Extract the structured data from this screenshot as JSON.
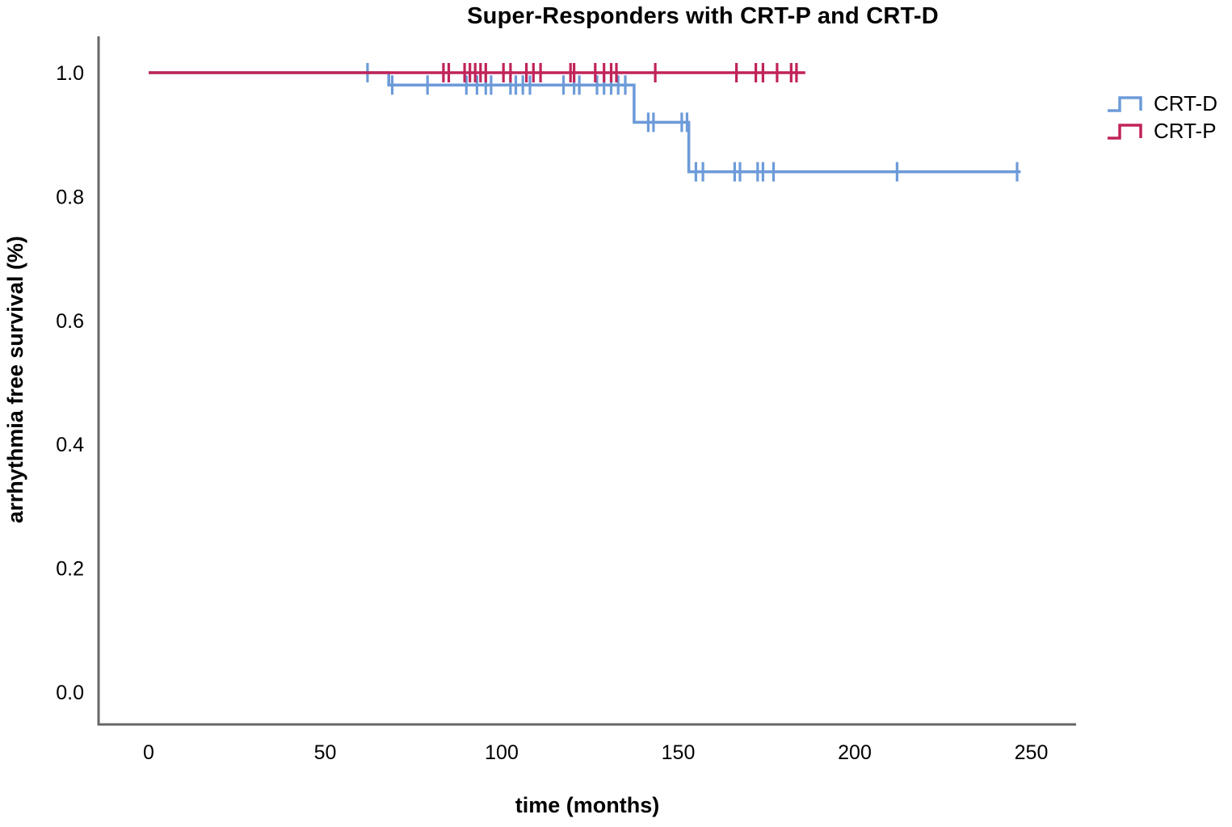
{
  "title": "Super-Responders with CRT-P and CRT-D",
  "legend": {
    "position": "right",
    "entries": [
      {
        "label": "CRT-D",
        "color": "#6D9BD8"
      },
      {
        "label": "CRT-P",
        "color": "#C02459"
      }
    ]
  },
  "axes": {
    "x": {
      "label": "time (months)",
      "tick_labels": [
        "0",
        "50",
        "100",
        "150",
        "200",
        "250"
      ]
    },
    "y": {
      "label": "arrhythmia free survival (%)",
      "tick_labels": [
        "0.0",
        "0.2",
        "0.4",
        "0.6",
        "0.8",
        "1.0"
      ]
    }
  },
  "colors": {
    "crt_d_line": "#6D9BD8",
    "crt_p_line": "#C02459",
    "axis_line": "#666666",
    "text": "#000000",
    "background": "#FFFFFF"
  },
  "chart_data": {
    "type": "line",
    "subtype": "kaplan_meier_step",
    "title": "Super-Responders with CRT-P and CRT-D",
    "xlabel": "time (months)",
    "ylabel": "arrhythmia free survival (%)",
    "xlim": [
      -14,
      263
    ],
    "ylim": [
      -0.06,
      1.06
    ],
    "x_ticks": [
      0,
      50,
      100,
      150,
      200,
      250
    ],
    "y_ticks": [
      0.0,
      0.2,
      0.4,
      0.6,
      0.8,
      1.0
    ],
    "grid": false,
    "legend_position": "right",
    "series": [
      {
        "name": "CRT-D",
        "color": "#6D9BD8",
        "steps": [
          [
            0,
            1.0
          ],
          [
            68,
            1.0
          ],
          [
            68,
            0.98
          ],
          [
            137.5,
            0.98
          ],
          [
            137.5,
            0.92
          ],
          [
            153,
            0.92
          ],
          [
            153,
            0.84
          ],
          [
            247,
            0.84
          ]
        ],
        "censor_marks": [
          [
            62,
            1.0
          ],
          [
            69,
            0.98
          ],
          [
            79,
            0.98
          ],
          [
            90,
            0.98
          ],
          [
            93,
            0.98
          ],
          [
            95.5,
            0.98
          ],
          [
            97,
            0.98
          ],
          [
            102.5,
            0.98
          ],
          [
            104,
            0.98
          ],
          [
            106,
            0.98
          ],
          [
            108,
            0.98
          ],
          [
            117.5,
            0.98
          ],
          [
            120.5,
            0.98
          ],
          [
            122,
            0.98
          ],
          [
            127,
            0.98
          ],
          [
            129,
            0.98
          ],
          [
            131,
            0.98
          ],
          [
            133,
            0.98
          ],
          [
            135,
            0.98
          ],
          [
            141.5,
            0.92
          ],
          [
            143,
            0.92
          ],
          [
            151,
            0.92
          ],
          [
            152.5,
            0.92
          ],
          [
            155,
            0.84
          ],
          [
            157,
            0.84
          ],
          [
            166,
            0.84
          ],
          [
            167.5,
            0.84
          ],
          [
            172.5,
            0.84
          ],
          [
            174,
            0.84
          ],
          [
            177,
            0.84
          ],
          [
            212,
            0.84
          ],
          [
            246,
            0.84
          ]
        ]
      },
      {
        "name": "CRT-P",
        "color": "#C02459",
        "steps": [
          [
            0,
            1.0
          ],
          [
            186,
            1.0
          ]
        ],
        "censor_marks": [
          [
            83.5,
            1.0
          ],
          [
            85,
            1.0
          ],
          [
            89.5,
            1.0
          ],
          [
            91,
            1.0
          ],
          [
            92.5,
            1.0
          ],
          [
            94,
            1.0
          ],
          [
            95.5,
            1.0
          ],
          [
            100.5,
            1.0
          ],
          [
            102.5,
            1.0
          ],
          [
            107,
            1.0
          ],
          [
            109,
            1.0
          ],
          [
            111,
            1.0
          ],
          [
            119.5,
            1.0
          ],
          [
            120.5,
            1.0
          ],
          [
            126.5,
            1.0
          ],
          [
            129,
            1.0
          ],
          [
            131,
            1.0
          ],
          [
            132.5,
            1.0
          ],
          [
            143.5,
            1.0
          ],
          [
            166.5,
            1.0
          ],
          [
            172,
            1.0
          ],
          [
            174,
            1.0
          ],
          [
            178,
            1.0
          ],
          [
            182,
            1.0
          ],
          [
            183.5,
            1.0
          ]
        ]
      }
    ]
  }
}
